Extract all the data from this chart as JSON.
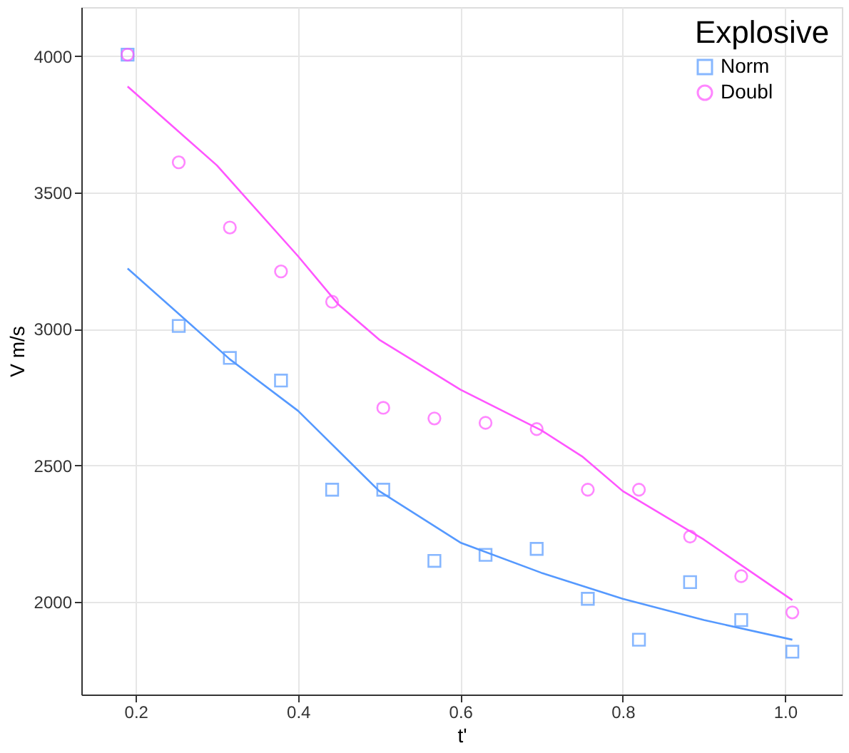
{
  "chart_data": {
    "type": "scatter",
    "xlabel": "t'",
    "ylabel": "V m/s",
    "legend_title": "Explosive",
    "legend": "top right",
    "grid": true,
    "xlim": [
      0.133,
      1.07
    ],
    "ylim": [
      1660,
      4180
    ],
    "xticks": [
      0.2,
      0.4,
      0.6,
      0.8,
      {
        "value": 1.0,
        "label": "1.0"
      }
    ],
    "yticks": [
      2000,
      2500,
      3000,
      3500,
      4000
    ],
    "x": [
      0.19,
      0.253,
      0.316,
      0.379,
      0.442,
      0.505,
      0.568,
      0.631,
      0.694,
      0.757,
      0.82,
      0.883,
      0.946,
      1.009
    ],
    "series": [
      {
        "name": "Norm",
        "color": "#5599ff",
        "marker": "square",
        "values": [
          4006,
          3011,
          2894,
          2811,
          2411,
          2411,
          2150,
          2172,
          2194,
          2011,
          1861,
          2072,
          1933,
          1817
        ]
      },
      {
        "name": "Doubl",
        "color": "#ff55ff",
        "marker": "circle",
        "values": [
          4006,
          3611,
          3372,
          3211,
          3100,
          2711,
          2672,
          2656,
          2633,
          2411,
          2411,
          2239,
          2094,
          1961
        ]
      },
      {
        "type": "line",
        "color": "#5599ff",
        "marker": "none",
        "line_style": "solid",
        "x": [
          0.19,
          0.316,
          0.4,
          0.5,
          0.6,
          0.7,
          0.8,
          0.9,
          1.009
        ],
        "values": [
          3222,
          2889,
          2700,
          2406,
          2217,
          2106,
          2011,
          1933,
          1861
        ]
      },
      {
        "type": "line",
        "color": "#ff55ff",
        "marker": "none",
        "line_style": "solid",
        "x": [
          0.19,
          0.3,
          0.4,
          0.45,
          0.5,
          0.6,
          0.7,
          0.75,
          0.8,
          0.9,
          1.009
        ],
        "values": [
          3889,
          3600,
          3267,
          3089,
          2961,
          2778,
          2628,
          2533,
          2406,
          2228,
          2006
        ]
      }
    ]
  }
}
